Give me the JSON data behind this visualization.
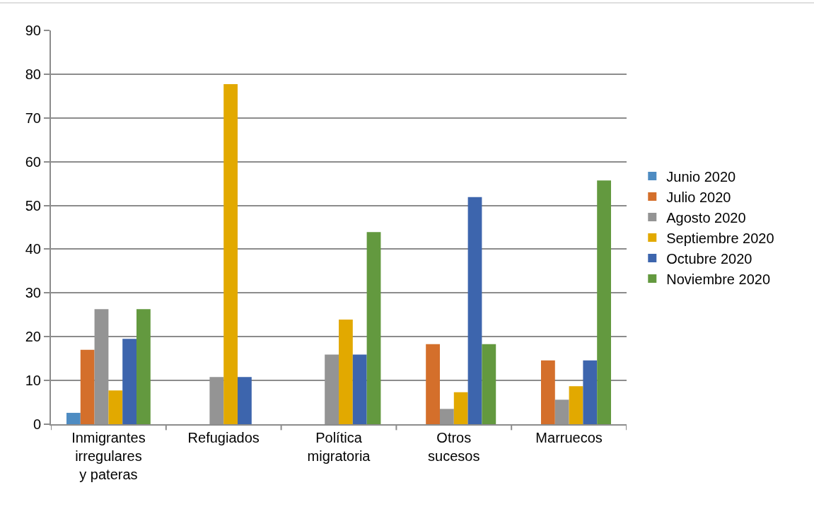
{
  "chart_data": {
    "type": "bar",
    "categories": [
      "Inmigrantes irregulares y pateras",
      "Refugiados",
      "Política migratoria",
      "Otros sucesos",
      "Marruecos"
    ],
    "series": [
      {
        "name": "Junio 2020",
        "color": "#4e8cc2",
        "values": [
          2.6,
          0,
          0,
          0,
          0
        ]
      },
      {
        "name": "Julio 2020",
        "color": "#d46f2b",
        "values": [
          17.0,
          0,
          0,
          18.3,
          14.6
        ]
      },
      {
        "name": "Agosto 2020",
        "color": "#949494",
        "values": [
          26.3,
          10.8,
          15.9,
          3.5,
          5.6
        ]
      },
      {
        "name": "Septiembre 2020",
        "color": "#e2a900",
        "values": [
          7.7,
          77.7,
          23.9,
          7.3,
          8.7
        ]
      },
      {
        "name": "Octubre 2020",
        "color": "#3d65ad",
        "values": [
          19.5,
          10.8,
          15.9,
          51.9,
          14.6
        ]
      },
      {
        "name": "Noviembre 2020",
        "color": "#63993f",
        "values": [
          26.3,
          0,
          43.9,
          18.3,
          55.7
        ]
      }
    ],
    "ylim": [
      0,
      90
    ],
    "yticks": [
      0,
      10,
      20,
      30,
      40,
      50,
      60,
      70,
      80,
      90
    ],
    "grid": "y",
    "legend": "right"
  }
}
